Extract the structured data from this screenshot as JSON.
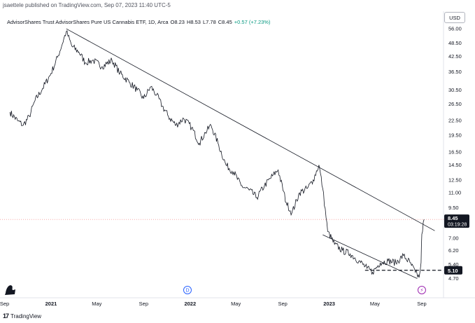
{
  "header": {
    "publisher": "jsaettele published on TradingView.com, Sep 07, 2023 11:40 UTC-5",
    "symbol": "AdvisorShares Trust AdvisorShares Pure US Cannabis ETF, 1D, Arca",
    "open": "O8.23",
    "high": "H8.53",
    "low": "L7.78",
    "close": "C8.45",
    "change": "+0.57 (+7.23%)",
    "currency": "USD"
  },
  "price_badge": {
    "price": "8.45",
    "countdown": "03:19:28"
  },
  "level_badge": {
    "price": "5.10"
  },
  "events": {
    "dividend": "D",
    "split": "⚡"
  },
  "footer": {
    "brand": "TradingView"
  },
  "colors": {
    "price_line": "#131722",
    "trendline": "#131722",
    "dotted_price": "#ef5350",
    "dividend": "#2962ff",
    "split": "#9c27b0",
    "axis_text": "#131722",
    "change_positive": "#089981"
  },
  "chart_data": {
    "type": "line",
    "title": "AdvisorShares Trust AdvisorShares Pure US Cannabis ETF, 1D, Arca",
    "scale": "log",
    "ylim": [
      4.4,
      58
    ],
    "y_ticks": [
      "56.00",
      "48.50",
      "42.50",
      "36.50",
      "30.50",
      "26.50",
      "22.50",
      "19.50",
      "16.50",
      "14.50",
      "12.50",
      "11.00",
      "9.50",
      "7.00",
      "6.20",
      "5.40",
      "4.70"
    ],
    "x_ticks": [
      "Sep",
      "2021",
      "May",
      "Sep",
      "2022",
      "May",
      "Sep",
      "2023",
      "May",
      "Sep"
    ],
    "x_tick_dates": [
      "2020-09-01",
      "2021-01-01",
      "2021-05-01",
      "2021-09-01",
      "2022-01-01",
      "2022-05-01",
      "2022-09-01",
      "2023-01-01",
      "2023-05-01",
      "2023-09-01"
    ],
    "series": [
      {
        "values": [
          [
            "2020-09-15",
            24.5
          ],
          [
            "2020-10-05",
            22.5
          ],
          [
            "2020-10-20",
            21.5
          ],
          [
            "2020-11-05",
            23.5
          ],
          [
            "2020-11-20",
            27.5
          ],
          [
            "2020-12-10",
            31.0
          ],
          [
            "2021-01-01",
            36.0
          ],
          [
            "2021-01-20",
            43.0
          ],
          [
            "2021-02-10",
            54.5
          ],
          [
            "2021-02-25",
            47.0
          ],
          [
            "2021-03-15",
            44.5
          ],
          [
            "2021-04-01",
            40.0
          ],
          [
            "2021-04-20",
            41.0
          ],
          [
            "2021-05-15",
            38.5
          ],
          [
            "2021-06-10",
            41.0
          ],
          [
            "2021-07-01",
            36.0
          ],
          [
            "2021-07-25",
            33.0
          ],
          [
            "2021-08-15",
            30.5
          ],
          [
            "2021-09-01",
            28.0
          ],
          [
            "2021-09-20",
            31.5
          ],
          [
            "2021-10-05",
            29.0
          ],
          [
            "2021-10-20",
            26.0
          ],
          [
            "2021-11-05",
            23.5
          ],
          [
            "2021-11-25",
            21.5
          ],
          [
            "2021-12-15",
            23.0
          ],
          [
            "2022-01-05",
            21.0
          ],
          [
            "2022-01-25",
            18.0
          ],
          [
            "2022-02-10",
            20.0
          ],
          [
            "2022-02-25",
            21.5
          ],
          [
            "2022-03-15",
            18.0
          ],
          [
            "2022-04-05",
            14.5
          ],
          [
            "2022-04-25",
            13.5
          ],
          [
            "2022-05-15",
            11.8
          ],
          [
            "2022-06-05",
            11.3
          ],
          [
            "2022-06-25",
            10.5
          ],
          [
            "2022-07-15",
            11.8
          ],
          [
            "2022-08-05",
            13.0
          ],
          [
            "2022-08-20",
            13.8
          ],
          [
            "2022-09-10",
            10.0
          ],
          [
            "2022-09-25",
            9.0
          ],
          [
            "2022-10-15",
            11.0
          ],
          [
            "2022-11-05",
            11.5
          ],
          [
            "2022-11-20",
            12.5
          ],
          [
            "2022-12-05",
            14.5
          ],
          [
            "2022-12-15",
            11.5
          ],
          [
            "2022-12-28",
            7.5
          ],
          [
            "2023-01-15",
            6.6
          ],
          [
            "2023-02-05",
            6.2
          ],
          [
            "2023-02-25",
            6.0
          ],
          [
            "2023-03-20",
            5.6
          ],
          [
            "2023-04-10",
            5.2
          ],
          [
            "2023-04-25",
            5.0
          ],
          [
            "2023-05-15",
            5.5
          ],
          [
            "2023-06-05",
            5.6
          ],
          [
            "2023-06-25",
            5.5
          ],
          [
            "2023-07-15",
            5.9
          ],
          [
            "2023-08-01",
            5.5
          ],
          [
            "2023-08-15",
            5.0
          ],
          [
            "2023-08-25",
            4.75
          ],
          [
            "2023-08-30",
            5.5
          ],
          [
            "2023-09-01",
            7.3
          ],
          [
            "2023-09-07",
            8.45
          ]
        ]
      }
    ],
    "last_price": 8.45,
    "horizontal_level": 5.1,
    "trendline": {
      "from": [
        "2021-02-10",
        56.0
      ],
      "to": [
        "2023-10-05",
        7.55
      ]
    },
    "lower_channel": {
      "from": [
        "2022-12-15",
        7.25
      ],
      "to": [
        "2023-08-20",
        4.7
      ]
    },
    "events": [
      {
        "type": "dividend",
        "date": "2021-12-25"
      },
      {
        "type": "split",
        "date": "2023-09-01"
      }
    ]
  }
}
